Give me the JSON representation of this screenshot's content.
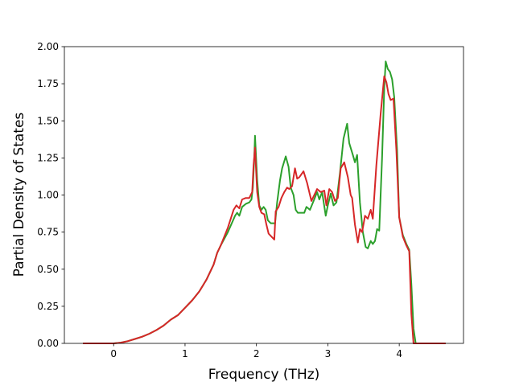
{
  "chart_data": {
    "type": "line",
    "title": "",
    "xlabel": "Frequency (THz)",
    "ylabel": "Partial Density of States",
    "xlim": [
      -0.69,
      4.9
    ],
    "ylim": [
      0,
      2.0
    ],
    "xticks": [
      "0",
      "1",
      "2",
      "3",
      "4"
    ],
    "yticks": [
      "0.00",
      "0.25",
      "0.50",
      "0.75",
      "1.00",
      "1.25",
      "1.50",
      "1.75",
      "2.00"
    ],
    "grid": false,
    "series": [
      {
        "color": "#2ca02c",
        "points": [
          [
            -0.43,
            0
          ],
          [
            0,
            0
          ],
          [
            0.1,
            0.005
          ],
          [
            0.2,
            0.015
          ],
          [
            0.3,
            0.03
          ],
          [
            0.4,
            0.045
          ],
          [
            0.5,
            0.065
          ],
          [
            0.6,
            0.09
          ],
          [
            0.7,
            0.12
          ],
          [
            0.8,
            0.16
          ],
          [
            0.9,
            0.19
          ],
          [
            1.0,
            0.24
          ],
          [
            1.1,
            0.29
          ],
          [
            1.2,
            0.35
          ],
          [
            1.3,
            0.43
          ],
          [
            1.4,
            0.53
          ],
          [
            1.45,
            0.61
          ],
          [
            1.5,
            0.66
          ],
          [
            1.6,
            0.75
          ],
          [
            1.7,
            0.86
          ],
          [
            1.73,
            0.88
          ],
          [
            1.76,
            0.86
          ],
          [
            1.8,
            0.92
          ],
          [
            1.85,
            0.94
          ],
          [
            1.9,
            0.95
          ],
          [
            1.93,
            0.97
          ],
          [
            1.95,
            1.05
          ],
          [
            1.97,
            1.25
          ],
          [
            1.98,
            1.4
          ],
          [
            2.01,
            1.1
          ],
          [
            2.04,
            0.93
          ],
          [
            2.07,
            0.9
          ],
          [
            2.1,
            0.92
          ],
          [
            2.13,
            0.9
          ],
          [
            2.16,
            0.83
          ],
          [
            2.2,
            0.81
          ],
          [
            2.26,
            0.81
          ],
          [
            2.29,
            0.95
          ],
          [
            2.33,
            1.1
          ],
          [
            2.36,
            1.18
          ],
          [
            2.41,
            1.26
          ],
          [
            2.45,
            1.19
          ],
          [
            2.48,
            1.05
          ],
          [
            2.52,
            1.0
          ],
          [
            2.55,
            0.9
          ],
          [
            2.58,
            0.88
          ],
          [
            2.62,
            0.88
          ],
          [
            2.67,
            0.88
          ],
          [
            2.7,
            0.92
          ],
          [
            2.75,
            0.9
          ],
          [
            2.8,
            0.96
          ],
          [
            2.85,
            1.02
          ],
          [
            2.88,
            0.97
          ],
          [
            2.92,
            1.02
          ],
          [
            2.97,
            0.86
          ],
          [
            3.0,
            0.93
          ],
          [
            3.04,
            1.01
          ],
          [
            3.08,
            0.93
          ],
          [
            3.12,
            0.95
          ],
          [
            3.17,
            1.15
          ],
          [
            3.22,
            1.38
          ],
          [
            3.27,
            1.48
          ],
          [
            3.3,
            1.35
          ],
          [
            3.35,
            1.27
          ],
          [
            3.38,
            1.22
          ],
          [
            3.41,
            1.27
          ],
          [
            3.45,
            0.95
          ],
          [
            3.49,
            0.75
          ],
          [
            3.53,
            0.65
          ],
          [
            3.56,
            0.64
          ],
          [
            3.6,
            0.69
          ],
          [
            3.63,
            0.67
          ],
          [
            3.66,
            0.69
          ],
          [
            3.69,
            0.77
          ],
          [
            3.72,
            0.76
          ],
          [
            3.76,
            1.25
          ],
          [
            3.79,
            1.72
          ],
          [
            3.81,
            1.9
          ],
          [
            3.84,
            1.85
          ],
          [
            3.87,
            1.83
          ],
          [
            3.9,
            1.78
          ],
          [
            3.93,
            1.66
          ],
          [
            3.97,
            1.3
          ],
          [
            4.0,
            0.85
          ],
          [
            4.05,
            0.73
          ],
          [
            4.1,
            0.67
          ],
          [
            4.14,
            0.63
          ],
          [
            4.17,
            0.4
          ],
          [
            4.2,
            0.1
          ],
          [
            4.23,
            0
          ],
          [
            4.65,
            0
          ]
        ]
      },
      {
        "color": "#d62728",
        "points": [
          [
            -0.43,
            0
          ],
          [
            0,
            0
          ],
          [
            0.1,
            0.005
          ],
          [
            0.2,
            0.015
          ],
          [
            0.3,
            0.03
          ],
          [
            0.4,
            0.045
          ],
          [
            0.5,
            0.065
          ],
          [
            0.6,
            0.09
          ],
          [
            0.7,
            0.12
          ],
          [
            0.8,
            0.16
          ],
          [
            0.9,
            0.19
          ],
          [
            1.0,
            0.24
          ],
          [
            1.1,
            0.29
          ],
          [
            1.2,
            0.35
          ],
          [
            1.3,
            0.43
          ],
          [
            1.4,
            0.53
          ],
          [
            1.45,
            0.61
          ],
          [
            1.5,
            0.66
          ],
          [
            1.6,
            0.78
          ],
          [
            1.68,
            0.9
          ],
          [
            1.72,
            0.93
          ],
          [
            1.76,
            0.91
          ],
          [
            1.8,
            0.97
          ],
          [
            1.85,
            0.98
          ],
          [
            1.9,
            0.98
          ],
          [
            1.94,
            1.02
          ],
          [
            1.96,
            1.2
          ],
          [
            1.98,
            1.32
          ],
          [
            2.01,
            1.02
          ],
          [
            2.04,
            0.92
          ],
          [
            2.07,
            0.88
          ],
          [
            2.11,
            0.87
          ],
          [
            2.14,
            0.8
          ],
          [
            2.17,
            0.74
          ],
          [
            2.21,
            0.72
          ],
          [
            2.25,
            0.7
          ],
          [
            2.27,
            0.89
          ],
          [
            2.31,
            0.92
          ],
          [
            2.35,
            0.98
          ],
          [
            2.39,
            1.02
          ],
          [
            2.43,
            1.05
          ],
          [
            2.46,
            1.04
          ],
          [
            2.5,
            1.06
          ],
          [
            2.54,
            1.18
          ],
          [
            2.57,
            1.11
          ],
          [
            2.6,
            1.12
          ],
          [
            2.66,
            1.16
          ],
          [
            2.71,
            1.08
          ],
          [
            2.77,
            0.96
          ],
          [
            2.8,
            0.99
          ],
          [
            2.85,
            1.04
          ],
          [
            2.9,
            1.02
          ],
          [
            2.95,
            1.03
          ],
          [
            2.98,
            0.93
          ],
          [
            3.02,
            1.04
          ],
          [
            3.06,
            1.02
          ],
          [
            3.1,
            0.96
          ],
          [
            3.14,
            0.98
          ],
          [
            3.18,
            1.18
          ],
          [
            3.23,
            1.22
          ],
          [
            3.28,
            1.12
          ],
          [
            3.32,
            1.0
          ],
          [
            3.34,
            0.98
          ],
          [
            3.38,
            0.8
          ],
          [
            3.42,
            0.68
          ],
          [
            3.45,
            0.77
          ],
          [
            3.48,
            0.75
          ],
          [
            3.52,
            0.86
          ],
          [
            3.56,
            0.84
          ],
          [
            3.6,
            0.9
          ],
          [
            3.63,
            0.84
          ],
          [
            3.68,
            1.2
          ],
          [
            3.74,
            1.55
          ],
          [
            3.79,
            1.8
          ],
          [
            3.82,
            1.76
          ],
          [
            3.85,
            1.68
          ],
          [
            3.88,
            1.64
          ],
          [
            3.92,
            1.65
          ],
          [
            3.96,
            1.3
          ],
          [
            4.0,
            0.85
          ],
          [
            4.05,
            0.72
          ],
          [
            4.1,
            0.66
          ],
          [
            4.14,
            0.62
          ],
          [
            4.17,
            0.2
          ],
          [
            4.2,
            0
          ],
          [
            4.65,
            0
          ]
        ]
      }
    ]
  }
}
